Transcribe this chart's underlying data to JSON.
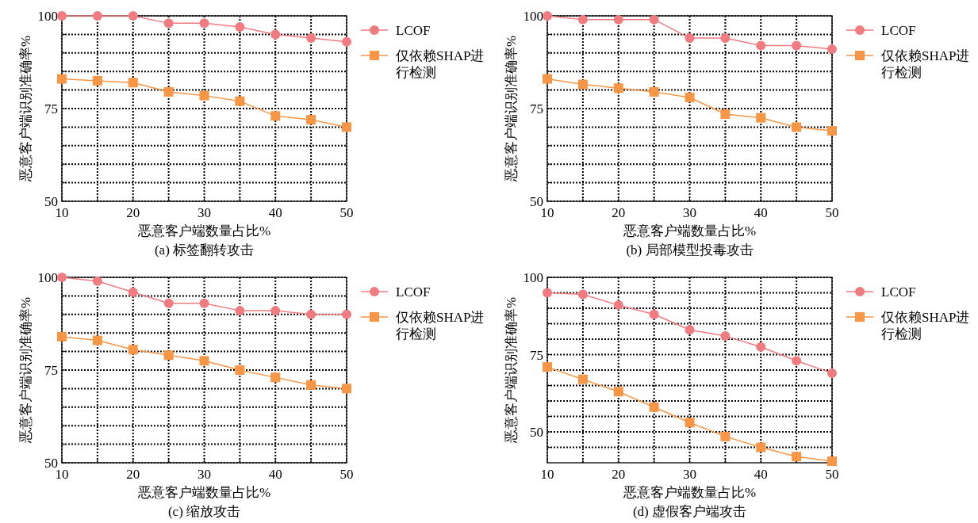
{
  "chart_data": [
    {
      "type": "line",
      "title": "(a) 标签翻转攻击",
      "xlabel": "恶意客户端数量占比%",
      "ylabel": "恶意客户端识别准确率%",
      "x": [
        10,
        15,
        20,
        25,
        30,
        35,
        40,
        45,
        50
      ],
      "xlim": [
        10,
        50
      ],
      "xticks": [
        10,
        {
          "value": 15,
          "label": null
        },
        20,
        {
          "value": 25,
          "label": null
        },
        30,
        {
          "value": 35,
          "label": null
        },
        40,
        {
          "value": 45,
          "label": null
        },
        50
      ],
      "ylim": [
        50,
        100
      ],
      "yticks": [
        50,
        {
          "value": 55,
          "label": null
        },
        {
          "value": 60,
          "label": null
        },
        {
          "value": 65,
          "label": null
        },
        {
          "value": 70,
          "label": null
        },
        75,
        {
          "value": 80,
          "label": null
        },
        {
          "value": 85,
          "label": null
        },
        {
          "value": 90,
          "label": null
        },
        {
          "value": 95,
          "label": null
        },
        100
      ],
      "grid": true,
      "legend": "right",
      "series": [
        {
          "name": "LCOF",
          "color": "#f07b80",
          "marker": "circle",
          "values": [
            100,
            100,
            100,
            98,
            98,
            97,
            95,
            94,
            93
          ]
        },
        {
          "name": "仅依赖SHAP进行检测",
          "color": "#f79646",
          "marker": "square",
          "values": [
            83,
            82.5,
            82,
            79.5,
            78.5,
            77,
            73,
            72,
            70
          ]
        }
      ]
    },
    {
      "type": "line",
      "title": "(b) 局部模型投毒攻击",
      "xlabel": "恶意客户端数量占比%",
      "ylabel": "恶意客户端识别准确率%",
      "x": [
        10,
        15,
        20,
        25,
        30,
        35,
        40,
        45,
        50
      ],
      "xlim": [
        10,
        50
      ],
      "xticks": [
        10,
        {
          "value": 15,
          "label": null
        },
        20,
        {
          "value": 25,
          "label": null
        },
        30,
        {
          "value": 35,
          "label": null
        },
        40,
        {
          "value": 45,
          "label": null
        },
        50
      ],
      "ylim": [
        50,
        100
      ],
      "yticks": [
        50,
        {
          "value": 55,
          "label": null
        },
        {
          "value": 60,
          "label": null
        },
        {
          "value": 65,
          "label": null
        },
        {
          "value": 70,
          "label": null
        },
        75,
        {
          "value": 80,
          "label": null
        },
        {
          "value": 85,
          "label": null
        },
        {
          "value": 90,
          "label": null
        },
        {
          "value": 95,
          "label": null
        },
        100
      ],
      "grid": true,
      "legend": "right",
      "series": [
        {
          "name": "LCOF",
          "color": "#f07b80",
          "marker": "circle",
          "values": [
            100,
            99,
            99,
            99,
            94,
            94,
            92,
            92,
            91
          ]
        },
        {
          "name": "仅依赖SHAP进行检测",
          "color": "#f79646",
          "marker": "square",
          "values": [
            83,
            81.5,
            80.5,
            79.5,
            78,
            73.5,
            72.5,
            70,
            69
          ]
        }
      ]
    },
    {
      "type": "line",
      "title": "(c) 缩放攻击",
      "xlabel": "恶意客户端数量占比%",
      "ylabel": "恶意客户端识别准确率%",
      "x": [
        10,
        15,
        20,
        25,
        30,
        35,
        40,
        45,
        50
      ],
      "xlim": [
        10,
        50
      ],
      "xticks": [
        10,
        {
          "value": 15,
          "label": null
        },
        20,
        {
          "value": 25,
          "label": null
        },
        30,
        {
          "value": 35,
          "label": null
        },
        40,
        {
          "value": 45,
          "label": null
        },
        50
      ],
      "ylim": [
        50,
        100
      ],
      "yticks": [
        50,
        {
          "value": 55,
          "label": null
        },
        {
          "value": 60,
          "label": null
        },
        {
          "value": 65,
          "label": null
        },
        {
          "value": 70,
          "label": null
        },
        75,
        {
          "value": 80,
          "label": null
        },
        {
          "value": 85,
          "label": null
        },
        {
          "value": 90,
          "label": null
        },
        {
          "value": 95,
          "label": null
        },
        100
      ],
      "grid": true,
      "legend": "right",
      "series": [
        {
          "name": "LCOF",
          "color": "#f07b80",
          "marker": "circle",
          "values": [
            100,
            99,
            96,
            93,
            93,
            91,
            91,
            90,
            90
          ]
        },
        {
          "name": "仅依赖SHAP进行检测",
          "color": "#f79646",
          "marker": "square",
          "values": [
            84,
            83,
            80.5,
            79,
            77.5,
            75,
            73,
            71,
            70
          ]
        }
      ]
    },
    {
      "type": "line",
      "title": "(d) 虚假客户端攻击",
      "xlabel": "恶意客户端数量占比%",
      "ylabel": "恶意客户端识别准确率%",
      "x": [
        10,
        15,
        20,
        25,
        30,
        35,
        40,
        45,
        50
      ],
      "xlim": [
        10,
        50
      ],
      "xticks": [
        10,
        {
          "value": 15,
          "label": null
        },
        20,
        {
          "value": 25,
          "label": null
        },
        30,
        {
          "value": 35,
          "label": null
        },
        40,
        {
          "value": 45,
          "label": null
        },
        50
      ],
      "ylim": [
        40,
        100
      ],
      "yticks": [
        {
          "value": 45,
          "label": null
        },
        50,
        {
          "value": 55,
          "label": null
        },
        {
          "value": 60,
          "label": null
        },
        {
          "value": 65,
          "label": null
        },
        {
          "value": 70,
          "label": null
        },
        75,
        {
          "value": 80,
          "label": null
        },
        {
          "value": 85,
          "label": null
        },
        {
          "value": 90,
          "label": null
        },
        {
          "value": 95,
          "label": null
        },
        100
      ],
      "grid": true,
      "legend": "right",
      "series": [
        {
          "name": "LCOF",
          "color": "#f07b80",
          "marker": "circle",
          "values": [
            95,
            94.5,
            91,
            88,
            83,
            81,
            77.5,
            73,
            69
          ]
        },
        {
          "name": "仅依赖SHAP进行检测",
          "color": "#f79646",
          "marker": "square",
          "values": [
            71,
            67,
            63,
            58,
            53,
            48.5,
            45,
            42,
            40.5
          ]
        }
      ]
    }
  ]
}
